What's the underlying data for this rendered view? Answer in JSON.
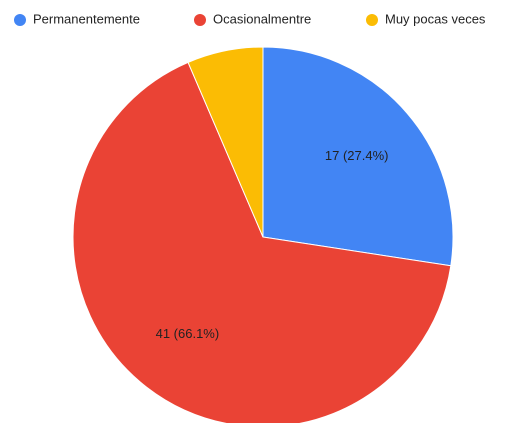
{
  "chart_data": {
    "type": "pie",
    "categories": [
      "Permanentemente",
      "Ocasionalmentre",
      "Muy pocas veces"
    ],
    "values": [
      17,
      41,
      4
    ],
    "value_labels": [
      "17 (27.4%)",
      "41 (66.1%)",
      null
    ],
    "colors": [
      "#4285f4",
      "#ea4335",
      "#fbbc04"
    ],
    "legend": "top"
  }
}
